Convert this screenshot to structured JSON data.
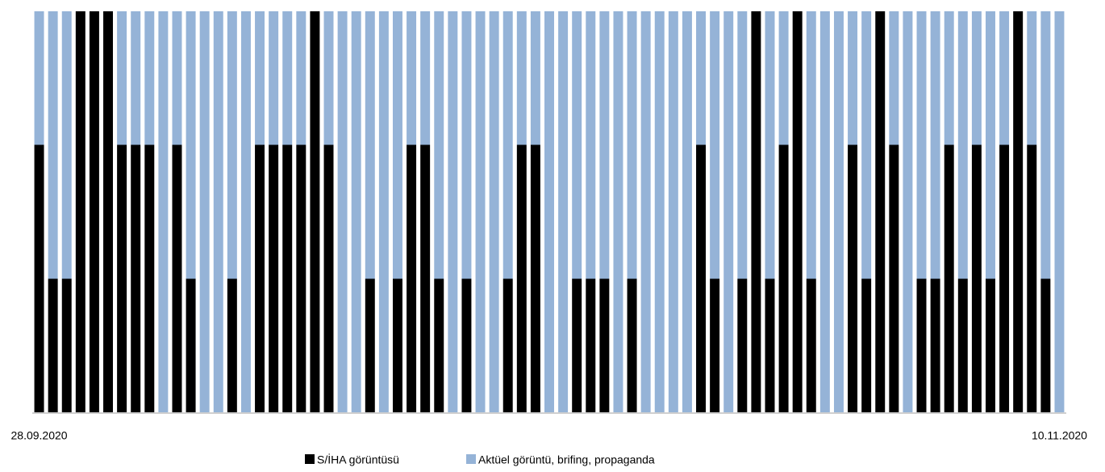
{
  "chart_data": {
    "type": "stacked_bar_100",
    "categories": [
      "28.09.2020",
      null,
      null,
      null,
      null,
      null,
      null,
      null,
      null,
      null,
      null,
      null,
      null,
      null,
      null,
      null,
      null,
      null,
      null,
      null,
      null,
      null,
      null,
      null,
      null,
      null,
      null,
      null,
      null,
      null,
      null,
      null,
      null,
      null,
      null,
      null,
      null,
      null,
      null,
      null,
      null,
      null,
      null,
      null,
      null,
      null,
      null,
      null,
      null,
      null,
      null,
      null,
      null,
      null,
      null,
      null,
      null,
      null,
      null,
      null,
      null,
      null,
      null,
      null,
      null,
      null,
      null,
      null,
      null,
      null,
      null,
      null,
      null,
      null,
      "10.11.2020"
    ],
    "series": [
      {
        "name": "S/İHA görüntüsü",
        "color": "#000000",
        "values": [
          66.7,
          33.3,
          33.3,
          100,
          100,
          100,
          66.7,
          66.7,
          66.7,
          0,
          66.7,
          33.3,
          0,
          0,
          33.3,
          0,
          66.7,
          66.7,
          66.7,
          66.7,
          100,
          66.7,
          0,
          0,
          33.3,
          0,
          33.3,
          66.7,
          66.7,
          33.3,
          0,
          33.3,
          0,
          0,
          33.3,
          66.7,
          66.7,
          0,
          0,
          33.3,
          33.3,
          33.3,
          0,
          33.3,
          0,
          0,
          0,
          0,
          66.7,
          33.3,
          0,
          33.3,
          100,
          33.3,
          66.7,
          100,
          33.3,
          0,
          0,
          66.7,
          33.3,
          100,
          66.7,
          0,
          33.3,
          33.3,
          66.7,
          33.3,
          66.7,
          33.3,
          66.7,
          100,
          66.7,
          33.3,
          0
        ]
      },
      {
        "name": "Aktüel görüntü, brifing, propaganda",
        "color": "#95b3d7",
        "values": [
          33.3,
          66.7,
          66.7,
          0,
          0,
          0,
          33.3,
          33.3,
          33.3,
          100,
          33.3,
          66.7,
          100,
          100,
          66.7,
          100,
          33.3,
          33.3,
          33.3,
          33.3,
          0,
          33.3,
          100,
          100,
          66.7,
          100,
          66.7,
          33.3,
          33.3,
          66.7,
          100,
          66.7,
          100,
          100,
          66.7,
          33.3,
          33.3,
          100,
          100,
          66.7,
          66.7,
          66.7,
          100,
          66.7,
          100,
          100,
          100,
          100,
          33.3,
          66.7,
          100,
          66.7,
          0,
          66.7,
          33.3,
          0,
          66.7,
          100,
          100,
          33.3,
          66.7,
          0,
          33.3,
          100,
          66.7,
          66.7,
          33.3,
          66.7,
          33.3,
          66.7,
          33.3,
          0,
          33.3,
          66.7,
          100
        ]
      }
    ],
    "ylim": [
      0,
      100
    ],
    "legend": "bottom"
  }
}
